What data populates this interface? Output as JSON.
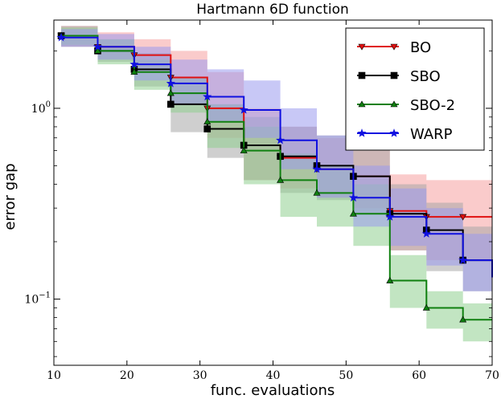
{
  "chart_data": {
    "type": "line",
    "title": "Hartmann 6D function",
    "xlabel": "func. evaluations",
    "ylabel": "error gap",
    "xlim": [
      10,
      70
    ],
    "ylim": [
      0.045,
      2.9
    ],
    "yscale": "log",
    "x_ticks": [
      10,
      20,
      30,
      40,
      50,
      60,
      70
    ],
    "y_ticks": [
      {
        "value": 1.0,
        "base": "10",
        "exp": "0"
      },
      {
        "value": 0.1,
        "base": "10",
        "exp": "−1"
      }
    ],
    "legend_position": "top-right",
    "series": [
      {
        "name": "BO",
        "color": "#e01010",
        "band_color": "#f5a0a0",
        "marker": "triangle-down",
        "x": [
          11,
          16,
          21,
          26,
          31,
          36,
          41,
          46,
          51,
          56,
          61,
          66,
          70
        ],
        "values": [
          2.4,
          2.1,
          1.9,
          1.45,
          1.0,
          0.64,
          0.55,
          0.48,
          0.44,
          0.29,
          0.27,
          0.27,
          0.27
        ],
        "upper": [
          2.7,
          2.5,
          2.3,
          2.0,
          1.55,
          1.0,
          0.8,
          0.7,
          0.6,
          0.45,
          0.42,
          0.42,
          0.42
        ],
        "lower": [
          2.1,
          1.8,
          1.55,
          1.05,
          0.7,
          0.42,
          0.38,
          0.34,
          0.3,
          0.18,
          0.16,
          0.16,
          0.16
        ]
      },
      {
        "name": "SBO",
        "color": "#000000",
        "band_color": "#a8a8a8",
        "marker": "square",
        "x": [
          11,
          16,
          21,
          26,
          31,
          36,
          41,
          46,
          51,
          56,
          61,
          66,
          70
        ],
        "values": [
          2.4,
          2.0,
          1.6,
          1.05,
          0.78,
          0.64,
          0.56,
          0.5,
          0.44,
          0.28,
          0.23,
          0.16,
          0.14
        ],
        "upper": [
          2.7,
          2.3,
          1.95,
          1.45,
          1.05,
          0.9,
          0.8,
          0.72,
          0.65,
          0.4,
          0.32,
          0.24,
          0.2
        ],
        "lower": [
          2.1,
          1.75,
          1.3,
          0.75,
          0.55,
          0.42,
          0.36,
          0.33,
          0.28,
          0.18,
          0.14,
          0.11,
          0.1
        ]
      },
      {
        "name": "SBO-2",
        "color": "#108010",
        "band_color": "#8fd08f",
        "marker": "triangle-up",
        "x": [
          11,
          16,
          21,
          26,
          31,
          36,
          41,
          46,
          51,
          56,
          61,
          66,
          70
        ],
        "values": [
          2.4,
          2.0,
          1.55,
          1.2,
          0.85,
          0.6,
          0.42,
          0.36,
          0.28,
          0.125,
          0.09,
          0.078,
          0.078
        ],
        "upper": [
          2.65,
          2.3,
          1.8,
          1.45,
          1.05,
          0.8,
          0.58,
          0.5,
          0.4,
          0.17,
          0.11,
          0.095,
          0.095
        ],
        "lower": [
          2.15,
          1.7,
          1.25,
          0.95,
          0.62,
          0.4,
          0.27,
          0.24,
          0.19,
          0.09,
          0.07,
          0.06,
          0.06
        ]
      },
      {
        "name": "WARP",
        "color": "#1010e0",
        "band_color": "#9a9aee",
        "marker": "star",
        "x": [
          11,
          16,
          21,
          26,
          31,
          36,
          41,
          46,
          51,
          56,
          61,
          66,
          70
        ],
        "values": [
          2.35,
          2.1,
          1.7,
          1.35,
          1.15,
          0.98,
          0.68,
          0.48,
          0.34,
          0.27,
          0.22,
          0.16,
          0.13
        ],
        "upper": [
          2.6,
          2.45,
          2.1,
          1.8,
          1.6,
          1.4,
          1.0,
          0.72,
          0.5,
          0.38,
          0.3,
          0.22,
          0.17
        ],
        "lower": [
          2.1,
          1.8,
          1.4,
          1.05,
          0.85,
          0.7,
          0.48,
          0.34,
          0.24,
          0.19,
          0.15,
          0.11,
          0.09
        ]
      }
    ]
  }
}
